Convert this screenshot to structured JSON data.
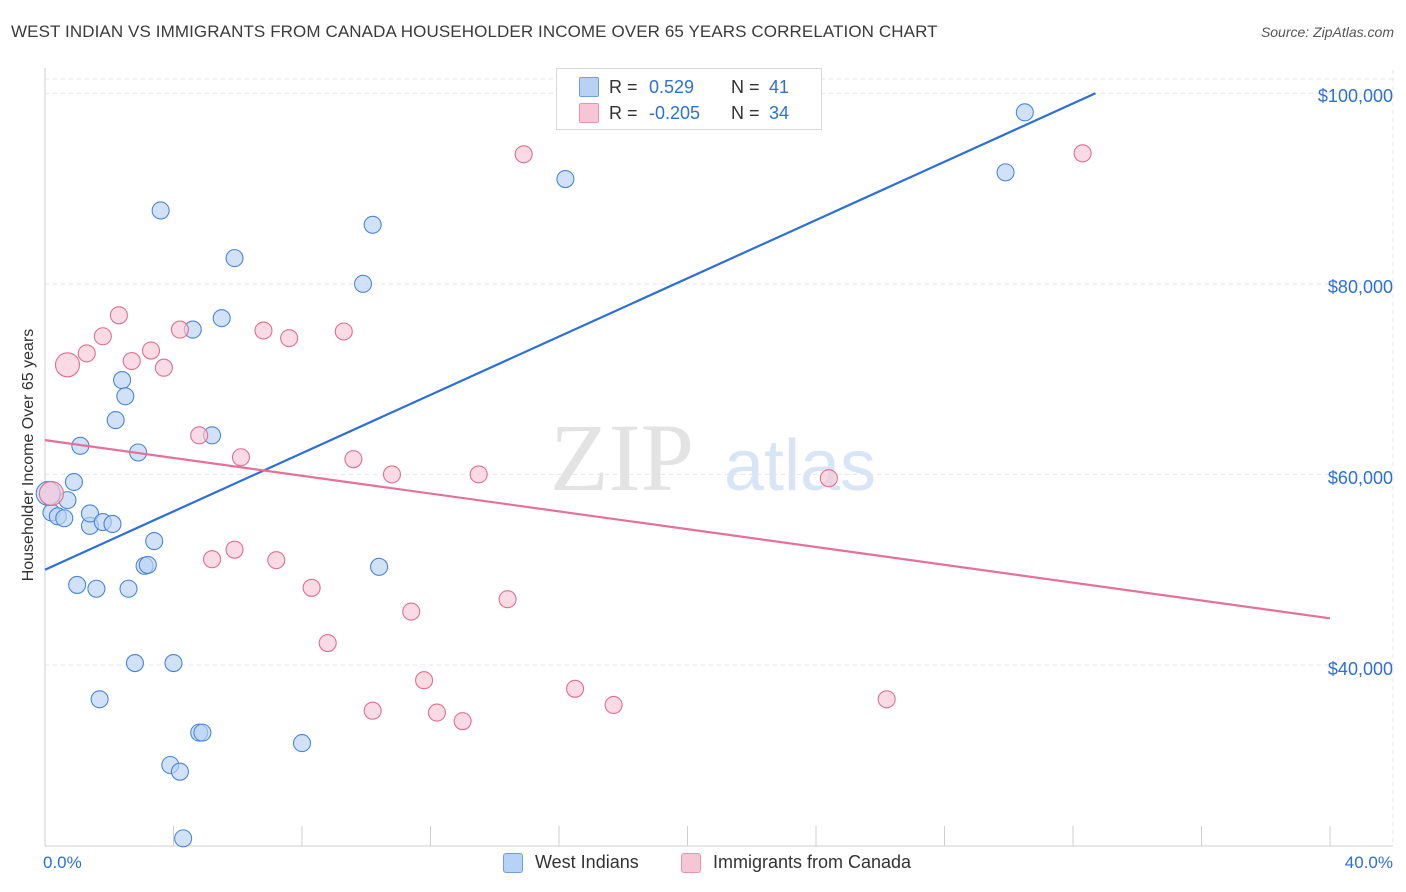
{
  "title": "WEST INDIAN VS IMMIGRANTS FROM CANADA HOUSEHOLDER INCOME OVER 65 YEARS CORRELATION CHART",
  "source": "Source: ZipAtlas.com",
  "watermark": {
    "zip": "ZIP",
    "atlas": "atlas"
  },
  "legend": {
    "r_label": "R =",
    "n_label": "N =",
    "rows": [
      {
        "r": "0.529",
        "n": "41",
        "fill": "#b8d2f4",
        "stroke": "#6f9fe0"
      },
      {
        "r": "-0.205",
        "n": "34",
        "fill": "#f7c6d5",
        "stroke": "#eb93ae"
      }
    ]
  },
  "bottom_legend": [
    {
      "label": "West Indians",
      "fill": "#b8d2f4",
      "stroke": "#6f9fe0"
    },
    {
      "label": "Immigrants from Canada",
      "fill": "#f7c6d5",
      "stroke": "#eb93ae"
    }
  ],
  "x_axis": {
    "min_label": "0.0%",
    "max_label": "40.0%"
  },
  "y_axis": {
    "label": "Householder Income Over 65 years",
    "ticks": [
      "$100,000",
      "$80,000",
      "$60,000",
      "$40,000"
    ]
  },
  "chart_data": {
    "type": "scatter",
    "title": "WEST INDIAN VS IMMIGRANTS FROM CANADA HOUSEHOLDER INCOME OVER 65 YEARS CORRELATION CHART",
    "xlabel": "",
    "ylabel": "Householder Income Over 65 years",
    "xlim": [
      0,
      40
    ],
    "ylim": [
      21000,
      101500
    ],
    "yticks": [
      40000,
      60000,
      80000,
      100000
    ],
    "grid": true,
    "series": [
      {
        "name": "West Indians",
        "color": "#4a86d8",
        "fill": "#b8d2f4",
        "r": 0.529,
        "n": 41,
        "trend": {
          "x0": 0,
          "y0": 50000,
          "x1": 32.7,
          "y1": 100000,
          "color": "#2e6fd6"
        },
        "points": [
          [
            0.2,
            56000
          ],
          [
            0.4,
            55600
          ],
          [
            0.6,
            55400
          ],
          [
            0.7,
            57300
          ],
          [
            0.9,
            59200
          ],
          [
            1.0,
            48400
          ],
          [
            1.1,
            63000
          ],
          [
            1.4,
            54600
          ],
          [
            1.4,
            55900
          ],
          [
            1.6,
            48000
          ],
          [
            1.7,
            36400
          ],
          [
            1.8,
            55000
          ],
          [
            2.1,
            54800
          ],
          [
            2.2,
            65700
          ],
          [
            2.4,
            69900
          ],
          [
            2.5,
            68200
          ],
          [
            2.6,
            48000
          ],
          [
            2.8,
            40200
          ],
          [
            2.9,
            62300
          ],
          [
            3.1,
            50400
          ],
          [
            3.2,
            50500
          ],
          [
            3.4,
            53000
          ],
          [
            3.6,
            87700
          ],
          [
            3.9,
            29500
          ],
          [
            4.0,
            40200
          ],
          [
            4.2,
            28800
          ],
          [
            4.3,
            21800
          ],
          [
            4.6,
            75200
          ],
          [
            4.8,
            32900
          ],
          [
            4.9,
            32900
          ],
          [
            5.2,
            64100
          ],
          [
            5.5,
            76400
          ],
          [
            5.9,
            82700
          ],
          [
            8.0,
            31800
          ],
          [
            9.9,
            80000
          ],
          [
            10.2,
            86200
          ],
          [
            10.4,
            50300
          ],
          [
            16.2,
            91000
          ],
          [
            29.9,
            91700
          ],
          [
            30.5,
            98000
          ],
          [
            0.1,
            58000
          ]
        ]
      },
      {
        "name": "Immigrants from Canada",
        "color": "#e0708f",
        "fill": "#f7c6d5",
        "r": -0.205,
        "n": 34,
        "trend": {
          "x0": 0,
          "y0": 63600,
          "x1": 40,
          "y1": 44900,
          "color": "#e5709a"
        },
        "points": [
          [
            0.2,
            58000
          ],
          [
            0.7,
            71500
          ],
          [
            1.3,
            72700
          ],
          [
            1.8,
            74500
          ],
          [
            2.3,
            76700
          ],
          [
            2.7,
            71900
          ],
          [
            3.3,
            73000
          ],
          [
            3.7,
            71200
          ],
          [
            4.2,
            75200
          ],
          [
            4.8,
            64100
          ],
          [
            5.2,
            51100
          ],
          [
            5.9,
            52100
          ],
          [
            6.1,
            61800
          ],
          [
            6.8,
            75100
          ],
          [
            7.2,
            51000
          ],
          [
            7.6,
            74300
          ],
          [
            8.3,
            48100
          ],
          [
            8.8,
            42300
          ],
          [
            9.3,
            75000
          ],
          [
            9.6,
            61600
          ],
          [
            10.2,
            35200
          ],
          [
            10.8,
            60000
          ],
          [
            11.4,
            45600
          ],
          [
            11.8,
            38400
          ],
          [
            12.2,
            35000
          ],
          [
            13.0,
            34100
          ],
          [
            13.5,
            60000
          ],
          [
            14.4,
            46900
          ],
          [
            14.9,
            93600
          ],
          [
            16.5,
            37500
          ],
          [
            17.7,
            35800
          ],
          [
            24.4,
            59600
          ],
          [
            26.2,
            36400
          ],
          [
            32.3,
            93700
          ]
        ]
      }
    ]
  }
}
